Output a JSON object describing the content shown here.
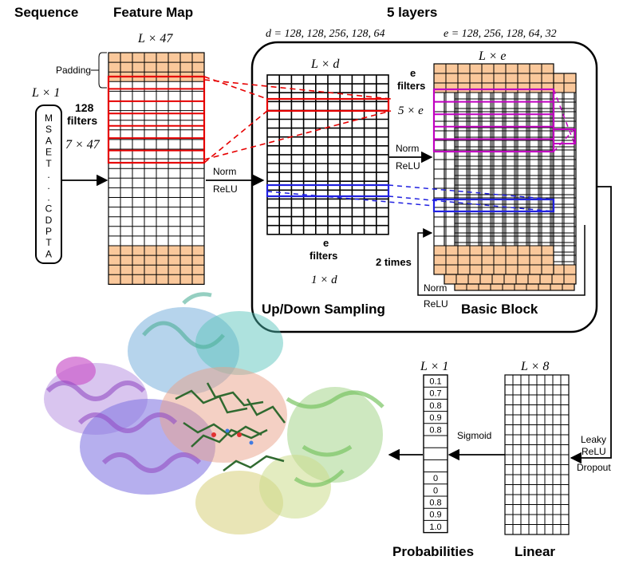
{
  "headings": {
    "sequence": "Sequence",
    "feature_map": "Feature Map",
    "layers": "5 layers",
    "updown": "Up/Down Sampling",
    "basic_block": "Basic Block",
    "probabilities": "Probabilities",
    "linear": "Linear"
  },
  "sequence": {
    "shape": "L × 1",
    "letters": [
      "M",
      "S",
      "A",
      "E",
      "T",
      ".",
      ".",
      ".",
      "C",
      "D",
      "P",
      "T",
      "A"
    ]
  },
  "feature_map": {
    "shape": "L × 47",
    "padding_label": "Padding",
    "filters_count": "128",
    "filters_word": "filters",
    "kernel": "7 × 47",
    "norm": "Norm",
    "relu": "ReLU"
  },
  "updown": {
    "d_values": "d = 128, 128, 256, 128, 64",
    "shape": "L × d",
    "filters_e": "e",
    "filters_word": "filters",
    "kernel": "1 × d"
  },
  "basic": {
    "e_values": "e = 128, 256, 128, 64, 32",
    "shape": "L × e",
    "filters_e": "e",
    "filters_word": "filters",
    "kernel": "5 × e",
    "norm": "Norm",
    "relu": "ReLU",
    "times": "2 times",
    "loop_norm": "Norm",
    "loop_relu": "ReLU"
  },
  "linear": {
    "shape": "L × 8",
    "leaky": "Leaky",
    "relu": "ReLU",
    "dropout": "Dropout"
  },
  "probabilities": {
    "shape": "L × 1",
    "sigmoid": "Sigmoid",
    "values": [
      "0.1",
      "0.7",
      "0.8",
      "0.9",
      "0.8",
      "",
      "",
      "",
      "0",
      "0",
      "0.8",
      "0.9",
      "1.0"
    ]
  },
  "colors": {
    "padding": "#fac89b",
    "filter_red": "#e60000",
    "filter_magenta": "#c000c0",
    "filter_blue": "#2020e0",
    "border": "#000000"
  }
}
